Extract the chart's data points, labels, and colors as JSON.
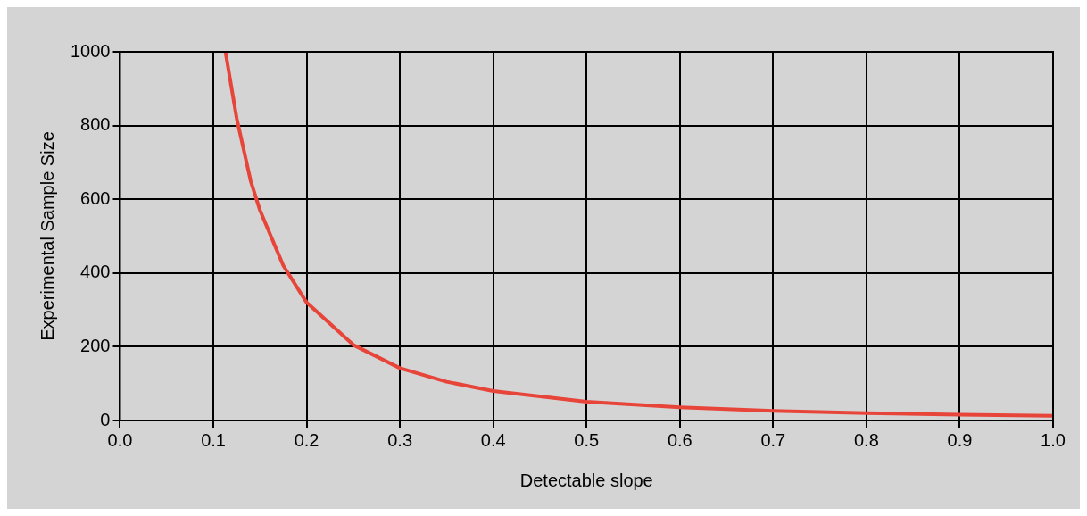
{
  "chart_data": {
    "type": "line",
    "xlabel": "Detectable slope",
    "ylabel": "Experimental Sample Size",
    "x": [
      0.113,
      0.125,
      0.14,
      0.15,
      0.175,
      0.2,
      0.25,
      0.3,
      0.35,
      0.4,
      0.5,
      0.6,
      0.7,
      0.8,
      0.9,
      1.0
    ],
    "series": [
      {
        "color": "#e8453a",
        "values": [
          1000,
          820,
          650,
          570,
          420,
          320,
          205,
          142,
          105,
          80,
          51,
          36,
          26,
          20,
          16,
          13
        ]
      }
    ],
    "xlim": [
      0,
      1
    ],
    "xticks": [
      {
        "value": 0,
        "label": "0.0"
      },
      0.1,
      0.2,
      0.3,
      0.4,
      0.5,
      0.6,
      0.7,
      0.8,
      0.9,
      {
        "value": 1,
        "label": "1.0"
      }
    ],
    "ylim": [
      0,
      1000
    ],
    "yticks": [
      0,
      200,
      400,
      600,
      800,
      1000
    ],
    "grid": true,
    "legend": false,
    "marker": "none",
    "line_style": "solid"
  }
}
